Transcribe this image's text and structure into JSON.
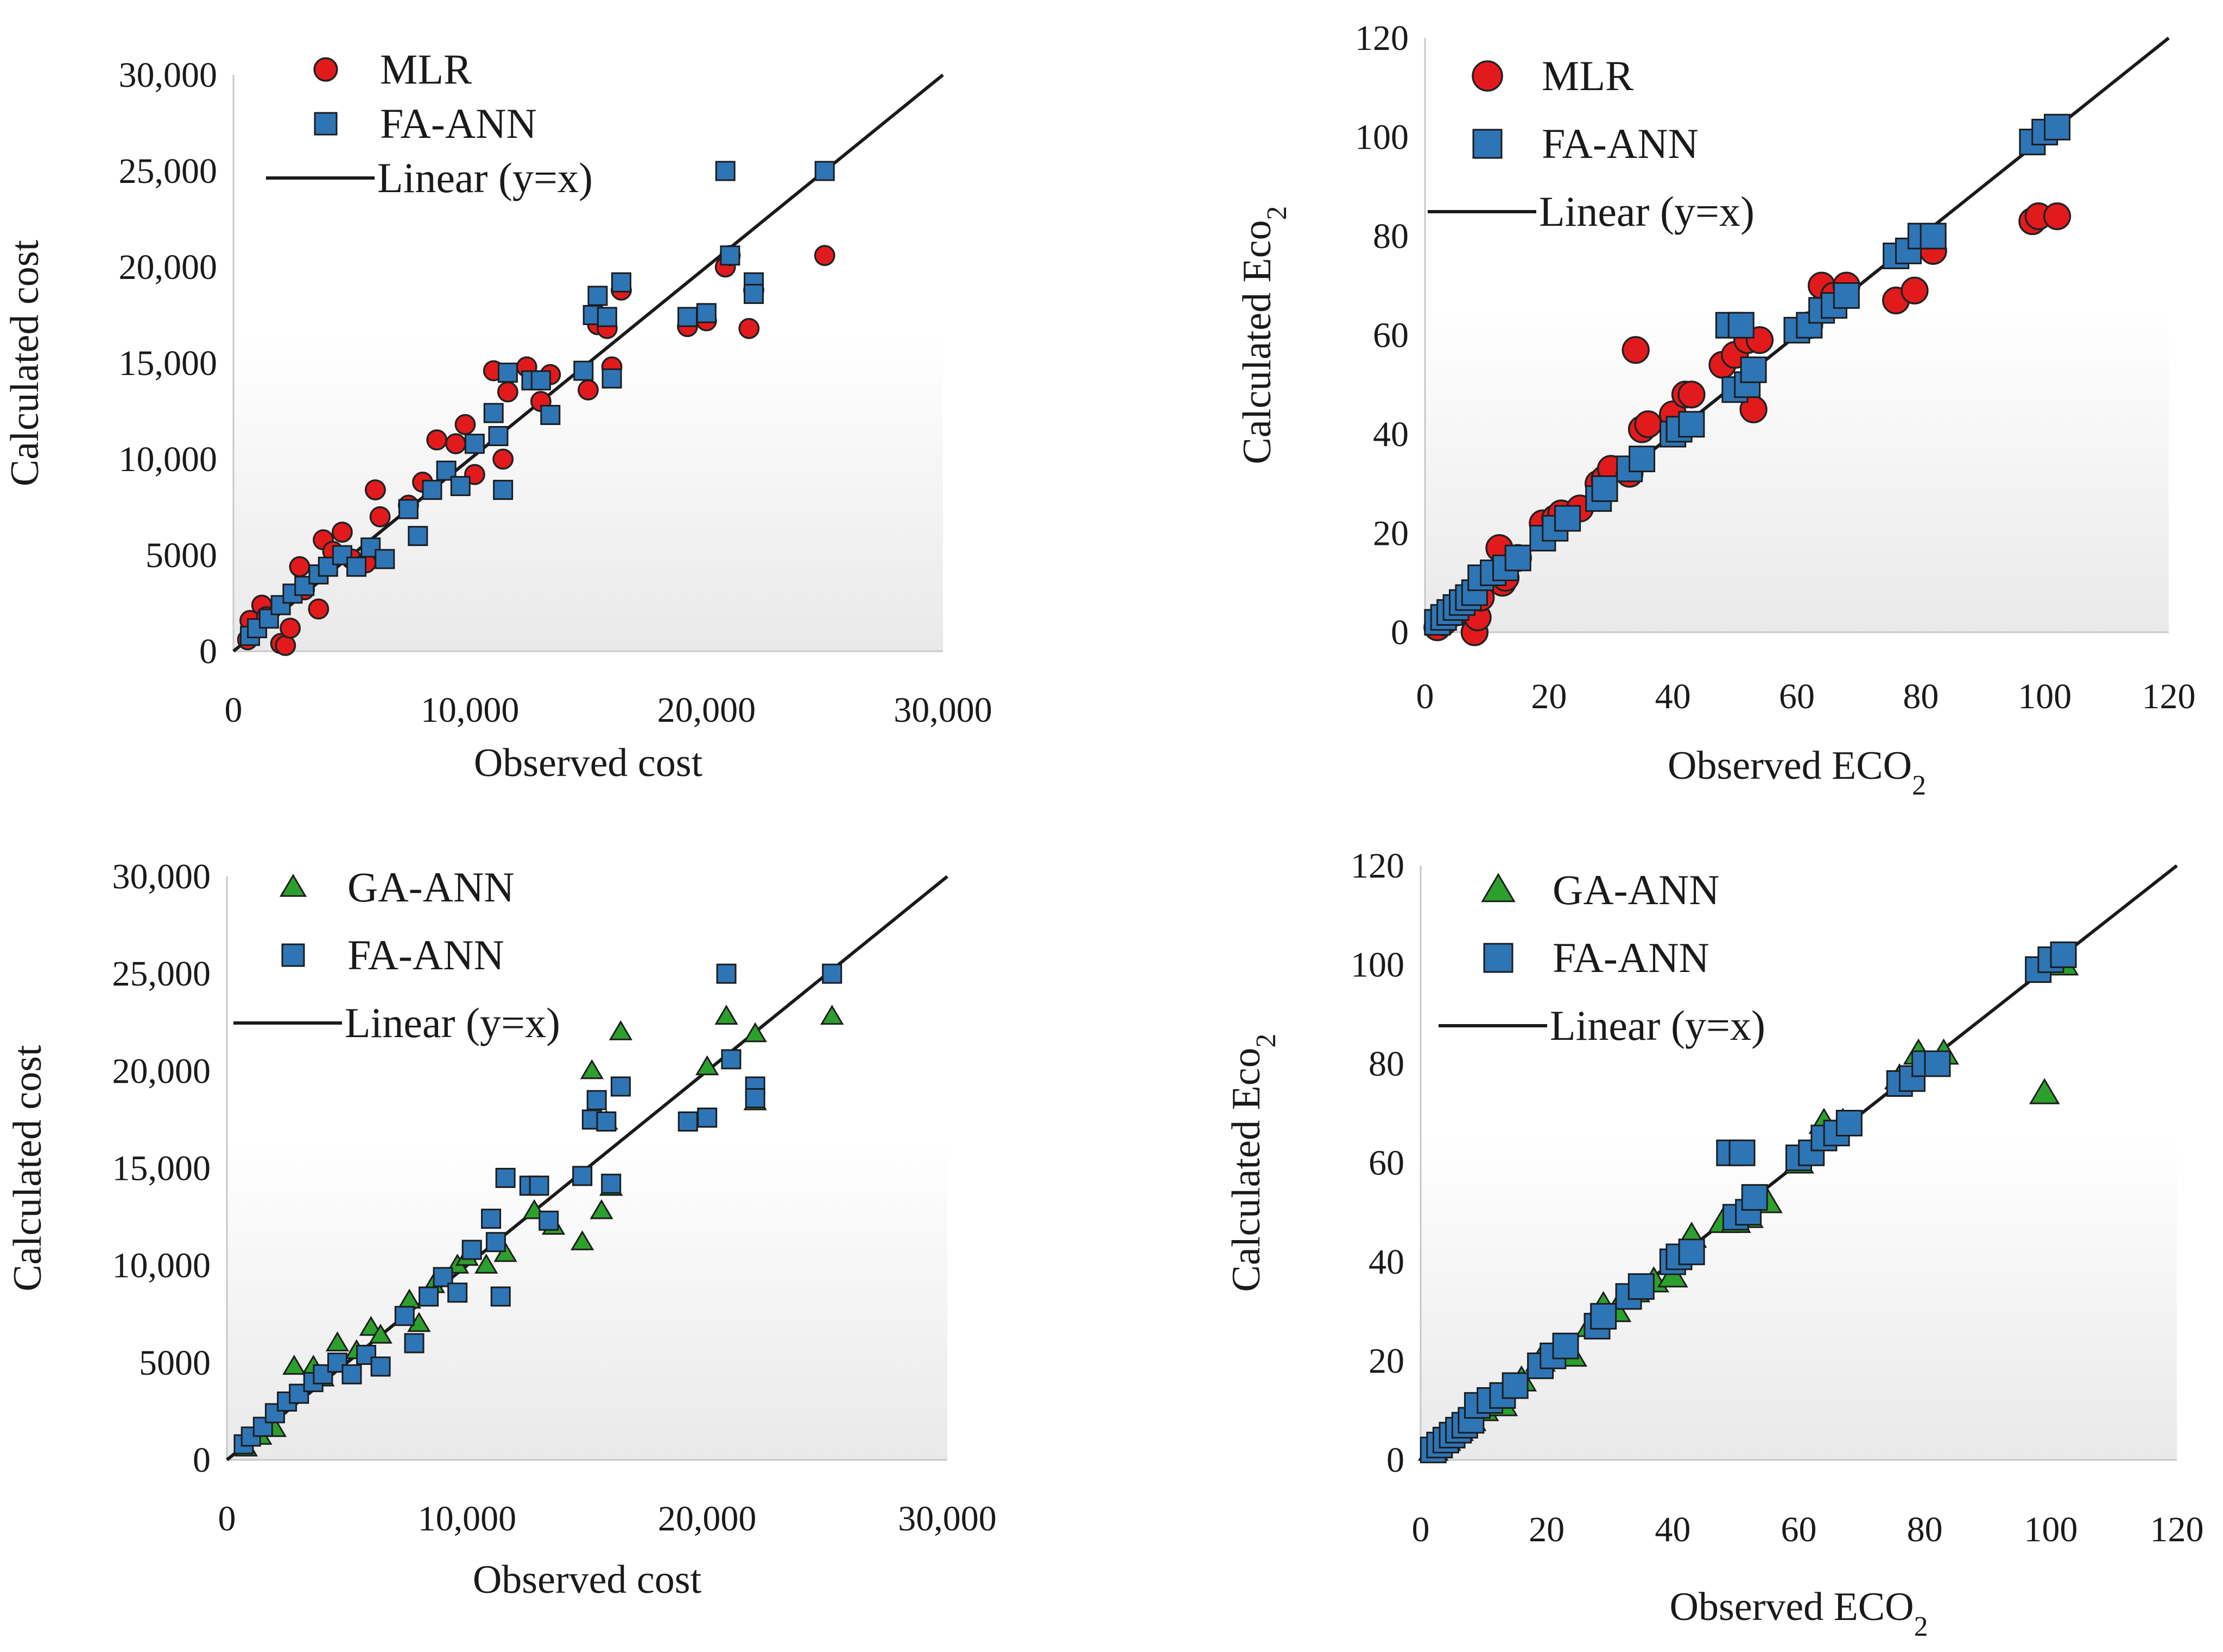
{
  "chart_data": [
    {
      "type": "scatter",
      "xlabel": "Observed cost",
      "ylabel": "Calculated cost",
      "xlim": [
        0,
        30000
      ],
      "ylim": [
        0,
        30000
      ],
      "xticks": [
        "0",
        "10,000",
        "20,000",
        "30,000"
      ],
      "yticks": [
        "0",
        "5000",
        "10,000",
        "15,000",
        "20,000",
        "25,000",
        "30,000"
      ],
      "legend": [
        "MLR",
        "FA-ANN",
        "Linear (y=x)"
      ],
      "series": [
        {
          "name": "MLR",
          "marker": "circle",
          "color": "#e31a1c",
          "x": [
            600,
            700,
            1200,
            1400,
            2000,
            2200,
            2400,
            2800,
            3000,
            3600,
            3800,
            4200,
            4600,
            5000,
            5600,
            6000,
            6200,
            7400,
            8000,
            8600,
            9400,
            9800,
            10200,
            11000,
            11400,
            11600,
            12400,
            13000,
            13400,
            15000,
            15400,
            15800,
            16000,
            16400,
            19200,
            20000,
            20800,
            21000,
            21800,
            22000,
            25000
          ],
          "y": [
            600,
            1600,
            2400,
            1800,
            400,
            300,
            1200,
            4400,
            3200,
            2200,
            5800,
            5200,
            6200,
            4800,
            4600,
            8400,
            7000,
            7600,
            8800,
            11000,
            10800,
            11800,
            9200,
            14600,
            10000,
            13500,
            14800,
            13000,
            14400,
            13600,
            17000,
            16800,
            14800,
            18800,
            16900,
            17200,
            20000,
            20600,
            16800,
            18800,
            20600
          ]
        },
        {
          "name": "FA-ANN",
          "marker": "square",
          "color": "#2e75b6",
          "x": [
            700,
            1000,
            1500,
            2000,
            2500,
            3000,
            3600,
            4000,
            4600,
            5200,
            5800,
            6400,
            7400,
            7800,
            8400,
            9000,
            9600,
            10200,
            11000,
            11200,
            11400,
            11600,
            12600,
            13000,
            13400,
            14800,
            15200,
            15400,
            15800,
            16000,
            16400,
            19200,
            20000,
            20800,
            21000,
            22000,
            22000,
            25000
          ],
          "y": [
            800,
            1200,
            1700,
            2400,
            3000,
            3400,
            4000,
            4400,
            5000,
            4400,
            5400,
            4800,
            7400,
            6000,
            8400,
            9400,
            8600,
            10800,
            12400,
            11200,
            8400,
            14500,
            14100,
            14100,
            12300,
            14600,
            17500,
            18500,
            17400,
            14200,
            19200,
            17400,
            17600,
            25000,
            20600,
            19200,
            18600,
            25000
          ]
        }
      ]
    },
    {
      "type": "scatter",
      "xlabel": "Observed ECO2",
      "ylabel": "Calculated Eco2",
      "xlim": [
        0,
        120
      ],
      "ylim": [
        0,
        120
      ],
      "xticks": [
        "0",
        "20",
        "40",
        "60",
        "80",
        "100",
        "120"
      ],
      "yticks": [
        "0",
        "20",
        "40",
        "60",
        "80",
        "100",
        "120"
      ],
      "legend": [
        "MLR",
        "FA-ANN",
        "Linear (y=x)"
      ],
      "series": [
        {
          "name": "MLR",
          "marker": "circle",
          "color": "#e31a1c",
          "x": [
            2,
            3,
            5,
            8,
            8.5,
            9,
            12,
            12.5,
            13,
            15,
            19,
            21,
            22,
            25,
            28,
            29,
            30,
            33,
            34,
            35,
            36,
            40,
            42,
            43,
            48,
            50,
            52,
            53,
            54,
            62,
            64,
            66,
            68,
            76,
            79,
            82,
            98,
            99,
            102
          ],
          "y": [
            1,
            2,
            4,
            0,
            3,
            7,
            17,
            10,
            11,
            15,
            22,
            23,
            24,
            25,
            30,
            31,
            33,
            32,
            57,
            41,
            42,
            44,
            48,
            48,
            54,
            56,
            59,
            45,
            59,
            62,
            70,
            68,
            70,
            67,
            69,
            77,
            83,
            84,
            84
          ]
        },
        {
          "name": "FA-ANN",
          "marker": "square",
          "color": "#2e75b6",
          "x": [
            2,
            3,
            4,
            5,
            6,
            7,
            8,
            9,
            11,
            13,
            15,
            19,
            21,
            23,
            28,
            29,
            33,
            35,
            40,
            41,
            43,
            49,
            51,
            50,
            52,
            53,
            60,
            62,
            64,
            66,
            68,
            76,
            78,
            80,
            82,
            98,
            100,
            102
          ],
          "y": [
            2,
            3,
            4,
            5,
            6,
            7,
            8,
            11,
            12,
            13,
            15,
            19,
            21,
            23,
            27,
            29,
            33,
            35,
            40,
            41,
            42,
            62,
            62,
            49,
            50,
            53,
            61,
            62,
            65,
            66,
            68,
            76,
            77,
            80,
            80,
            99,
            101,
            102
          ]
        }
      ]
    },
    {
      "type": "scatter",
      "xlabel": "Observed cost",
      "ylabel": "Calculated cost",
      "xlim": [
        0,
        30000
      ],
      "ylim": [
        0,
        30000
      ],
      "xticks": [
        "0",
        "10,000",
        "20,000",
        "30,000"
      ],
      "yticks": [
        "0",
        "5000",
        "10,000",
        "15,000",
        "20,000",
        "25,000",
        "30,000"
      ],
      "legend": [
        "GA-ANN",
        "FA-ANN",
        "Linear (y=x)"
      ],
      "series": [
        {
          "name": "GA-ANN",
          "marker": "triangle",
          "color": "#2ca02c",
          "x": [
            800,
            1400,
            2000,
            2800,
            3600,
            4000,
            4600,
            5400,
            6000,
            6400,
            7600,
            8000,
            8600,
            9600,
            10000,
            10800,
            11600,
            12800,
            13600,
            14800,
            15200,
            15600,
            15800,
            16000,
            16400,
            20000,
            20800,
            22000,
            22000,
            25200
          ],
          "y": [
            600,
            1200,
            1600,
            4800,
            4800,
            4200,
            6000,
            5600,
            6800,
            6400,
            8200,
            7000,
            9000,
            10000,
            10400,
            10000,
            10600,
            12800,
            12000,
            11200,
            20000,
            12800,
            17400,
            14000,
            22000,
            20200,
            22800,
            21900,
            18400,
            22800
          ]
        },
        {
          "name": "FA-ANN",
          "marker": "square",
          "color": "#2e75b6",
          "x": [
            700,
            1000,
            1500,
            2000,
            2500,
            3000,
            3600,
            4000,
            4600,
            5200,
            5800,
            6400,
            7400,
            7800,
            8400,
            9000,
            9600,
            10200,
            11000,
            11200,
            11400,
            11600,
            12600,
            13000,
            13400,
            14800,
            15200,
            15400,
            15800,
            16000,
            16400,
            19200,
            20000,
            20800,
            21000,
            22000,
            22000,
            25200
          ],
          "y": [
            800,
            1200,
            1700,
            2400,
            3000,
            3400,
            4000,
            4400,
            5000,
            4400,
            5400,
            4800,
            7400,
            6000,
            8400,
            9400,
            8600,
            10800,
            12400,
            11200,
            8400,
            14500,
            14100,
            14100,
            12300,
            14600,
            17500,
            18500,
            17400,
            14200,
            19200,
            17400,
            17600,
            25000,
            20600,
            19200,
            18600,
            25000
          ]
        }
      ]
    },
    {
      "type": "scatter",
      "xlabel": "Observed ECO2",
      "ylabel": "Calculated Eco2",
      "xlim": [
        0,
        120
      ],
      "ylim": [
        0,
        120
      ],
      "xticks": [
        "0",
        "20",
        "40",
        "60",
        "80",
        "100",
        "120"
      ],
      "yticks": [
        "0",
        "20",
        "40",
        "60",
        "80",
        "100",
        "120"
      ],
      "legend": [
        "GA-ANN",
        "FA-ANN",
        "Linear (y=x)"
      ],
      "series": [
        {
          "name": "GA-ANN",
          "marker": "triangle",
          "color": "#2ca02c",
          "x": [
            2,
            4,
            6,
            8,
            10,
            13,
            16,
            19,
            22,
            24,
            27,
            29,
            31,
            34,
            37,
            40,
            43,
            48,
            50,
            52,
            55,
            60,
            64,
            67,
            76,
            79,
            83,
            99,
            102
          ],
          "y": [
            2,
            4,
            6,
            8,
            10,
            11,
            16,
            20,
            22,
            21,
            27,
            31,
            30,
            34,
            36,
            37,
            45,
            48,
            48,
            49,
            52,
            60,
            68,
            68,
            77,
            82,
            82,
            74,
            100
          ]
        },
        {
          "name": "FA-ANN",
          "marker": "square",
          "color": "#2e75b6",
          "x": [
            2,
            3,
            4,
            5,
            6,
            7,
            8,
            9,
            11,
            13,
            15,
            19,
            21,
            23,
            28,
            29,
            33,
            35,
            40,
            41,
            43,
            49,
            51,
            50,
            52,
            53,
            60,
            62,
            64,
            66,
            68,
            76,
            78,
            80,
            82,
            98,
            100,
            102
          ],
          "y": [
            2,
            3,
            4,
            5,
            6,
            7,
            8,
            11,
            12,
            13,
            15,
            19,
            21,
            23,
            27,
            29,
            33,
            35,
            40,
            41,
            42,
            62,
            62,
            49,
            50,
            53,
            61,
            62,
            65,
            66,
            68,
            76,
            77,
            80,
            80,
            99,
            101,
            102
          ]
        }
      ]
    }
  ]
}
